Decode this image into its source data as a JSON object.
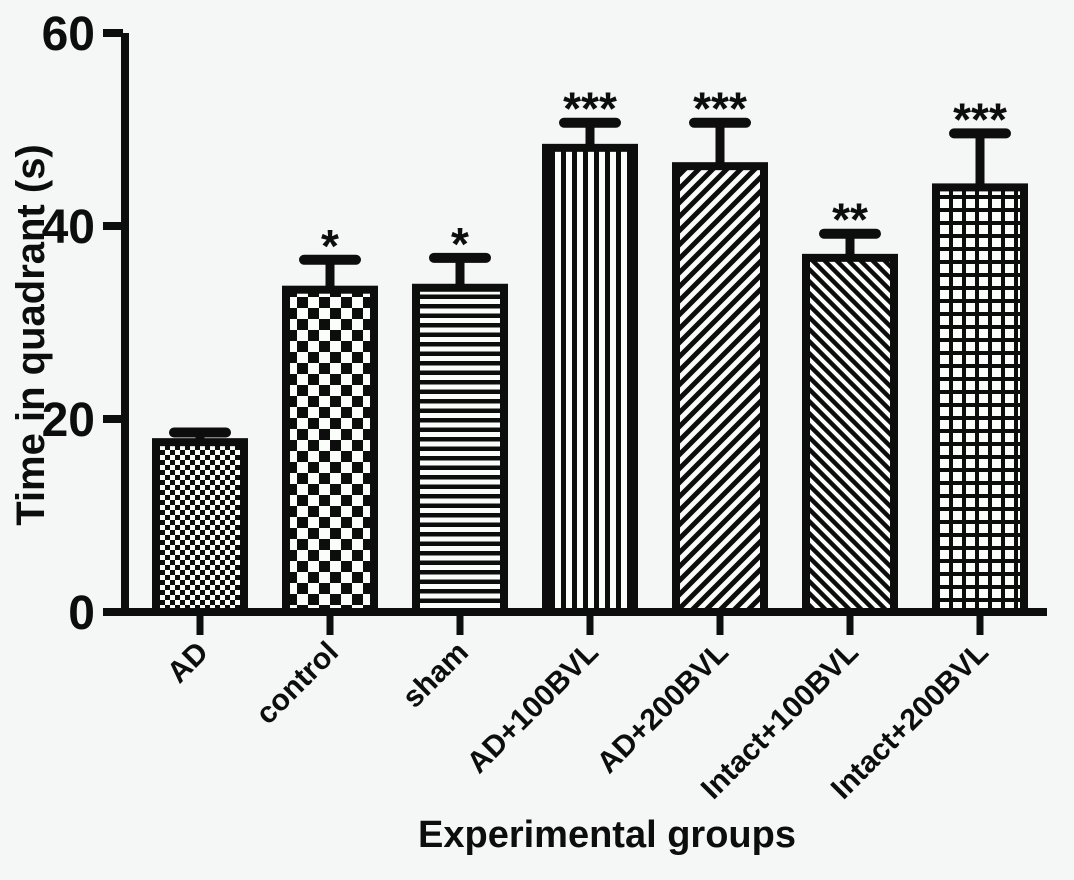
{
  "chart_data": {
    "type": "bar",
    "title": "",
    "xlabel": "Experimental groups",
    "ylabel": "Time in quadrant (s)",
    "ylim": [
      0,
      60
    ],
    "yticks": [
      0,
      20,
      40,
      60
    ],
    "categories": [
      "AD",
      "control",
      "sham",
      "AD+100BVL",
      "AD+200BVL",
      "Intact+100BVL",
      "Intact+200BVL"
    ],
    "values": [
      17.6,
      33.4,
      33.6,
      48.1,
      46.2,
      36.7,
      44.0
    ],
    "errors_plus": [
      1.0,
      3.1,
      3.1,
      2.6,
      4.5,
      2.5,
      5.6
    ],
    "significance": [
      "",
      "*",
      "*",
      "***",
      "***",
      "**",
      "***"
    ],
    "patterns": [
      "fine-checker",
      "checkerboard",
      "horizontal-lines",
      "vertical-lines",
      "diagonal-up-lines",
      "diagonal-down-lines",
      "grid-crosshatch"
    ],
    "grid": false,
    "legend": "none",
    "error_bar_style": "upper-only-with-cap",
    "x_tick_label_rotation_deg": -45,
    "ink_color": "#0d0d0d",
    "background_color": "#f5f7f6",
    "bar_fill_background": "#fbfdfb"
  }
}
